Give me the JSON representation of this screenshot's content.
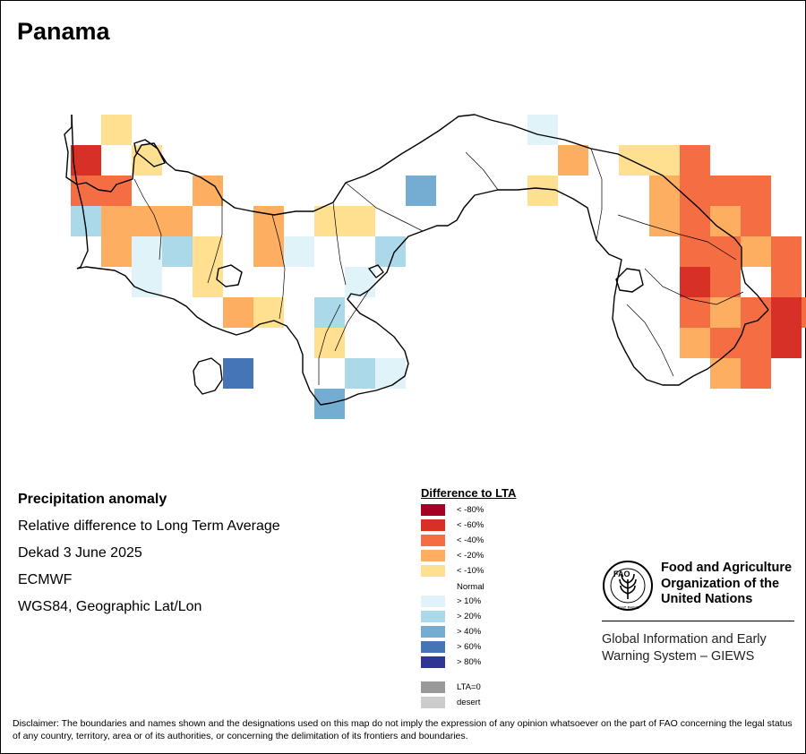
{
  "title": "Panama",
  "info": {
    "heading": "Precipitation anomaly",
    "subtitle": "Relative difference to Long Term Average",
    "period": "Dekad 3 June 2025",
    "source": "ECMWF",
    "projection": "WGS84, Geographic Lat/Lon"
  },
  "legend": {
    "title": "Difference to LTA",
    "classes": [
      {
        "label": "< -80%",
        "color": "#a50026"
      },
      {
        "label": "< -60%",
        "color": "#d73027"
      },
      {
        "label": "< -40%",
        "color": "#f46d43"
      },
      {
        "label": "< -20%",
        "color": "#fdae61"
      },
      {
        "label": "< -10%",
        "color": "#fee090"
      },
      {
        "label": "Normal",
        "color": "#ffffff"
      },
      {
        "label": "> 10%",
        "color": "#e0f3f8"
      },
      {
        "label": "> 20%",
        "color": "#abd9e9"
      },
      {
        "label": "> 40%",
        "color": "#74add1"
      },
      {
        "label": "> 60%",
        "color": "#4575b4"
      },
      {
        "label": "> 80%",
        "color": "#313695"
      }
    ],
    "special": [
      {
        "label": "LTA=0",
        "color": "#999999"
      },
      {
        "label": "desert",
        "color": "#cccccc"
      }
    ]
  },
  "organization": {
    "name_line1": "Food and Agriculture",
    "name_line2": "Organization of the",
    "name_line3": "United Nations",
    "logo_text": "FAO",
    "logo_motto": "FIAT PANIS",
    "system_line1": "Global Information and Early",
    "system_line2": "Warning System – GIEWS"
  },
  "disclaimer": "Disclaimer: The boundaries and names shown and the designations used on this map do not imply the expression of any opinion whatsoever on the part of FAO concerning the legal status of any country, territory, area or of its authorities, or concerning the delimitation of its frontiers and boundaries.",
  "map_cells": [
    {
      "row": 0,
      "col": 1,
      "cls": "< -10%"
    },
    {
      "row": 0,
      "col": 15,
      "cls": "> 10%"
    },
    {
      "row": 1,
      "col": 0,
      "cls": "< -60%"
    },
    {
      "row": 1,
      "col": 2,
      "cls": "< -10%"
    },
    {
      "row": 1,
      "col": 16,
      "cls": "< -20%"
    },
    {
      "row": 1,
      "col": 18,
      "cls": "< -10%"
    },
    {
      "row": 1,
      "col": 19,
      "cls": "< -10%"
    },
    {
      "row": 1,
      "col": 20,
      "cls": "< -40%"
    },
    {
      "row": 2,
      "col": 0,
      "cls": "< -40%"
    },
    {
      "row": 2,
      "col": 1,
      "cls": "< -40%"
    },
    {
      "row": 2,
      "col": 4,
      "cls": "< -20%"
    },
    {
      "row": 2,
      "col": 11,
      "cls": "> 40%"
    },
    {
      "row": 2,
      "col": 15,
      "cls": "< -10%"
    },
    {
      "row": 2,
      "col": 19,
      "cls": "< -20%"
    },
    {
      "row": 2,
      "col": 20,
      "cls": "< -40%"
    },
    {
      "row": 2,
      "col": 21,
      "cls": "< -40%"
    },
    {
      "row": 2,
      "col": 22,
      "cls": "< -40%"
    },
    {
      "row": 3,
      "col": 0,
      "cls": "> 20%"
    },
    {
      "row": 3,
      "col": 1,
      "cls": "< -20%"
    },
    {
      "row": 3,
      "col": 2,
      "cls": "< -20%"
    },
    {
      "row": 3,
      "col": 3,
      "cls": "< -20%"
    },
    {
      "row": 3,
      "col": 6,
      "cls": "< -20%"
    },
    {
      "row": 3,
      "col": 8,
      "cls": "< -10%"
    },
    {
      "row": 3,
      "col": 9,
      "cls": "< -10%"
    },
    {
      "row": 3,
      "col": 19,
      "cls": "< -20%"
    },
    {
      "row": 3,
      "col": 20,
      "cls": "< -40%"
    },
    {
      "row": 3,
      "col": 21,
      "cls": "< -20%"
    },
    {
      "row": 3,
      "col": 22,
      "cls": "< -40%"
    },
    {
      "row": 4,
      "col": 1,
      "cls": "< -20%"
    },
    {
      "row": 4,
      "col": 2,
      "cls": "> 10%"
    },
    {
      "row": 4,
      "col": 3,
      "cls": "> 20%"
    },
    {
      "row": 4,
      "col": 4,
      "cls": "< -10%"
    },
    {
      "row": 4,
      "col": 6,
      "cls": "< -20%"
    },
    {
      "row": 4,
      "col": 7,
      "cls": "> 10%"
    },
    {
      "row": 4,
      "col": 10,
      "cls": "> 20%"
    },
    {
      "row": 4,
      "col": 20,
      "cls": "< -40%"
    },
    {
      "row": 4,
      "col": 21,
      "cls": "< -40%"
    },
    {
      "row": 4,
      "col": 22,
      "cls": "< -20%"
    },
    {
      "row": 4,
      "col": 23,
      "cls": "< -40%"
    },
    {
      "row": 5,
      "col": 2,
      "cls": "> 10%"
    },
    {
      "row": 5,
      "col": 4,
      "cls": "< -10%"
    },
    {
      "row": 5,
      "col": 9,
      "cls": "> 10%"
    },
    {
      "row": 5,
      "col": 20,
      "cls": "< -60%"
    },
    {
      "row": 5,
      "col": 21,
      "cls": "< -40%"
    },
    {
      "row": 5,
      "col": 23,
      "cls": "< -40%"
    },
    {
      "row": 6,
      "col": 5,
      "cls": "< -20%"
    },
    {
      "row": 6,
      "col": 6,
      "cls": "< -10%"
    },
    {
      "row": 6,
      "col": 8,
      "cls": "> 20%"
    },
    {
      "row": 6,
      "col": 20,
      "cls": "< -40%"
    },
    {
      "row": 6,
      "col": 21,
      "cls": "< -20%"
    },
    {
      "row": 6,
      "col": 22,
      "cls": "< -40%"
    },
    {
      "row": 6,
      "col": 23,
      "cls": "< -60%"
    },
    {
      "row": 6,
      "col": 24,
      "cls": "< -40%"
    },
    {
      "row": 7,
      "col": 8,
      "cls": "< -10%"
    },
    {
      "row": 7,
      "col": 20,
      "cls": "< -20%"
    },
    {
      "row": 7,
      "col": 21,
      "cls": "< -40%"
    },
    {
      "row": 7,
      "col": 22,
      "cls": "< -40%"
    },
    {
      "row": 7,
      "col": 23,
      "cls": "< -60%"
    },
    {
      "row": 8,
      "col": 5,
      "cls": "> 60%"
    },
    {
      "row": 8,
      "col": 9,
      "cls": "> 20%"
    },
    {
      "row": 8,
      "col": 10,
      "cls": "> 10%"
    },
    {
      "row": 8,
      "col": 21,
      "cls": "< -20%"
    },
    {
      "row": 8,
      "col": 22,
      "cls": "< -40%"
    },
    {
      "row": 9,
      "col": 8,
      "cls": "> 40%"
    }
  ]
}
